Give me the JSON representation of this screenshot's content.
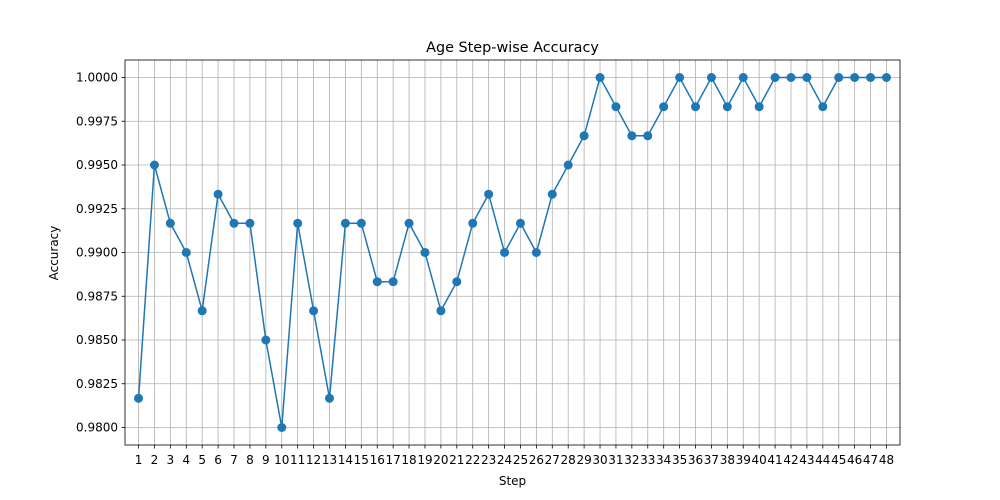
{
  "chart_data": {
    "type": "line",
    "title": "Age Step-wise Accuracy",
    "xlabel": "Step",
    "ylabel": "Accuracy",
    "x": [
      1,
      2,
      3,
      4,
      5,
      6,
      7,
      8,
      9,
      10,
      11,
      12,
      13,
      14,
      15,
      16,
      17,
      18,
      19,
      20,
      21,
      22,
      23,
      24,
      25,
      26,
      27,
      28,
      29,
      30,
      31,
      32,
      33,
      34,
      35,
      36,
      37,
      38,
      39,
      40,
      41,
      42,
      43,
      44,
      45,
      46,
      47,
      48
    ],
    "series": [
      {
        "values": [
          0.98167,
          0.995,
          0.99167,
          0.99,
          0.98667,
          0.99333,
          0.99167,
          0.99167,
          0.985,
          0.98,
          0.99167,
          0.98667,
          0.98167,
          0.99167,
          0.99167,
          0.98833,
          0.98833,
          0.99167,
          0.99,
          0.98667,
          0.98833,
          0.99167,
          0.99333,
          0.99,
          0.99167,
          0.99,
          0.99333,
          0.995,
          0.99667,
          1.0,
          0.99833,
          0.99667,
          0.99667,
          0.99833,
          1.0,
          0.99833,
          1.0,
          0.99833,
          1.0,
          0.99833,
          1.0,
          1.0,
          1.0,
          0.99833,
          1.0,
          1.0,
          1.0,
          1.0
        ],
        "color": "#1f77b4"
      }
    ],
    "xlim": [
      0.15,
      48.85
    ],
    "ylim": [
      0.979,
      1.001
    ],
    "yticks": [
      "0.9800",
      "0.9825",
      "0.9850",
      "0.9875",
      "0.9900",
      "0.9925",
      "0.9950",
      "0.9975",
      "1.0000"
    ],
    "grid": true,
    "grid_color": "#b0b0b0"
  }
}
